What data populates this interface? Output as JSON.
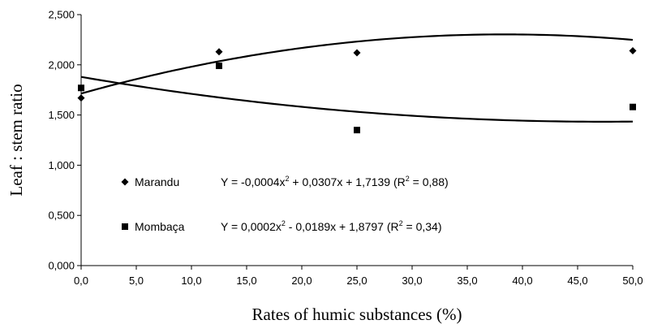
{
  "chart_data": {
    "type": "scatter",
    "xlabel": "Rates of humic substances (%)",
    "ylabel": "Leaf : stem ratio",
    "xlim": [
      0,
      50
    ],
    "ylim": [
      0,
      2.5
    ],
    "x_ticks": [
      "0,0",
      "5,0",
      "10,0",
      "15,0",
      "20,0",
      "25,0",
      "30,0",
      "35,0",
      "40,0",
      "45,0",
      "50,0"
    ],
    "y_ticks": [
      "0,000",
      "0,500",
      "1,000",
      "1,500",
      "2,000",
      "2,500"
    ],
    "grid": false,
    "series": [
      {
        "name": "Marandu",
        "marker": "diamond",
        "x": [
          0,
          12.5,
          25,
          50
        ],
        "y": [
          1.67,
          2.13,
          2.12,
          2.14
        ],
        "fit": {
          "a": -0.0004,
          "b": 0.0307,
          "c": 1.7139
        },
        "equation": {
          "lhs": "Y = -0,0004x",
          "mid": " + 0,0307x + 1,7139 (R",
          "end": " = 0,88)",
          "exp": "2"
        }
      },
      {
        "name": "Mombaça",
        "marker": "square",
        "x": [
          0,
          12.5,
          25,
          50
        ],
        "y": [
          1.77,
          1.99,
          1.35,
          1.58
        ],
        "fit": {
          "a": 0.0002,
          "b": -0.0189,
          "c": 1.8797
        },
        "equation": {
          "lhs": "Y = 0,0002x",
          "mid": " - 0,0189x + 1,8797 (R",
          "end": " = 0,34)",
          "exp": "2"
        }
      }
    ]
  }
}
